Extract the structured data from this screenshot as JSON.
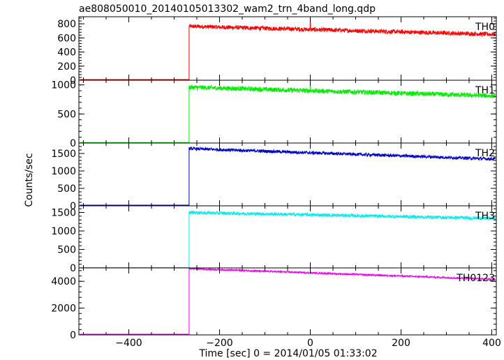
{
  "chart_data": {
    "type": "line",
    "title": "ae808050010_20140105013302_wam2_trn_4band_long.qdp",
    "xlabel": "Time [sec] 0 = 2014/01/05 01:33:02",
    "ylabel": "Counts/sec",
    "xlim": [
      -510,
      410
    ],
    "x_ticks": [
      -400,
      -200,
      0,
      200,
      400
    ],
    "x_tick_labels": [
      "−400",
      "−200",
      "0",
      "200",
      "400"
    ],
    "step_time": -267,
    "spike_time": 0,
    "grid": false,
    "panels": [
      {
        "name": "TH0",
        "color": "#ff0000",
        "ylim": [
          0,
          900
        ],
        "yticks": [
          0,
          200,
          400,
          600,
          800
        ],
        "baseline": 10,
        "level_start": 765,
        "level_end": 650,
        "noise": 30,
        "spike_peak": 890
      },
      {
        "name": "TH1",
        "color": "#00ee00",
        "ylim": [
          0,
          1080
        ],
        "yticks": [
          0,
          500,
          1000
        ],
        "baseline": 10,
        "level_start": 960,
        "level_end": 810,
        "noise": 40,
        "spike_peak": 1090
      },
      {
        "name": "TH2",
        "color": "#0000cc",
        "ylim": [
          0,
          1800
        ],
        "yticks": [
          0,
          500,
          1000,
          1500
        ],
        "baseline": 20,
        "level_start": 1640,
        "level_end": 1340,
        "noise": 45,
        "spike_peak": null
      },
      {
        "name": "TH3",
        "color": "#00eeee",
        "ylim": [
          0,
          1680
        ],
        "yticks": [
          0,
          500,
          1000,
          1500
        ],
        "baseline": 10,
        "level_start": 1500,
        "level_end": 1340,
        "noise": 45,
        "spike_peak": null
      },
      {
        "name": "TH0123",
        "color": "#ee00ee",
        "ylim": [
          0,
          5000
        ],
        "yticks": [
          0,
          2000,
          4000
        ],
        "baseline": 50,
        "level_start": 4950,
        "level_end": 4150,
        "noise": 60,
        "spike_peak": null
      }
    ]
  }
}
